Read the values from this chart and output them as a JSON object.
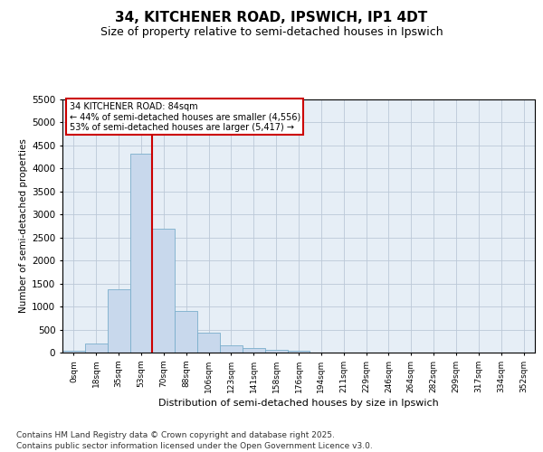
{
  "title": "34, KITCHENER ROAD, IPSWICH, IP1 4DT",
  "subtitle": "Size of property relative to semi-detached houses in Ipswich",
  "xlabel": "Distribution of semi-detached houses by size in Ipswich",
  "ylabel": "Number of semi-detached properties",
  "bar_labels": [
    "0sqm",
    "18sqm",
    "35sqm",
    "53sqm",
    "70sqm",
    "88sqm",
    "106sqm",
    "123sqm",
    "141sqm",
    "158sqm",
    "176sqm",
    "194sqm",
    "211sqm",
    "229sqm",
    "246sqm",
    "264sqm",
    "282sqm",
    "299sqm",
    "317sqm",
    "334sqm",
    "352sqm"
  ],
  "bar_values": [
    30,
    200,
    1380,
    4330,
    2700,
    900,
    430,
    155,
    100,
    60,
    30,
    0,
    0,
    0,
    0,
    0,
    0,
    0,
    0,
    0,
    0
  ],
  "bar_color": "#c8d8ec",
  "bar_edge_color": "#7aaecc",
  "grid_color": "#bcc8d8",
  "background_color": "#e6eef6",
  "vline_color": "#cc0000",
  "vline_index": 3.5,
  "property_size": "84sqm",
  "property_name": "34 KITCHENER ROAD",
  "pct_smaller": 44,
  "count_smaller": 4556,
  "pct_larger": 53,
  "count_larger": 5417,
  "annotation_box_color": "#cc0000",
  "ylim": [
    0,
    5500
  ],
  "yticks": [
    0,
    500,
    1000,
    1500,
    2000,
    2500,
    3000,
    3500,
    4000,
    4500,
    5000,
    5500
  ],
  "footer_line1": "Contains HM Land Registry data © Crown copyright and database right 2025.",
  "footer_line2": "Contains public sector information licensed under the Open Government Licence v3.0.",
  "title_fontsize": 11,
  "subtitle_fontsize": 9,
  "footer_fontsize": 6.5
}
